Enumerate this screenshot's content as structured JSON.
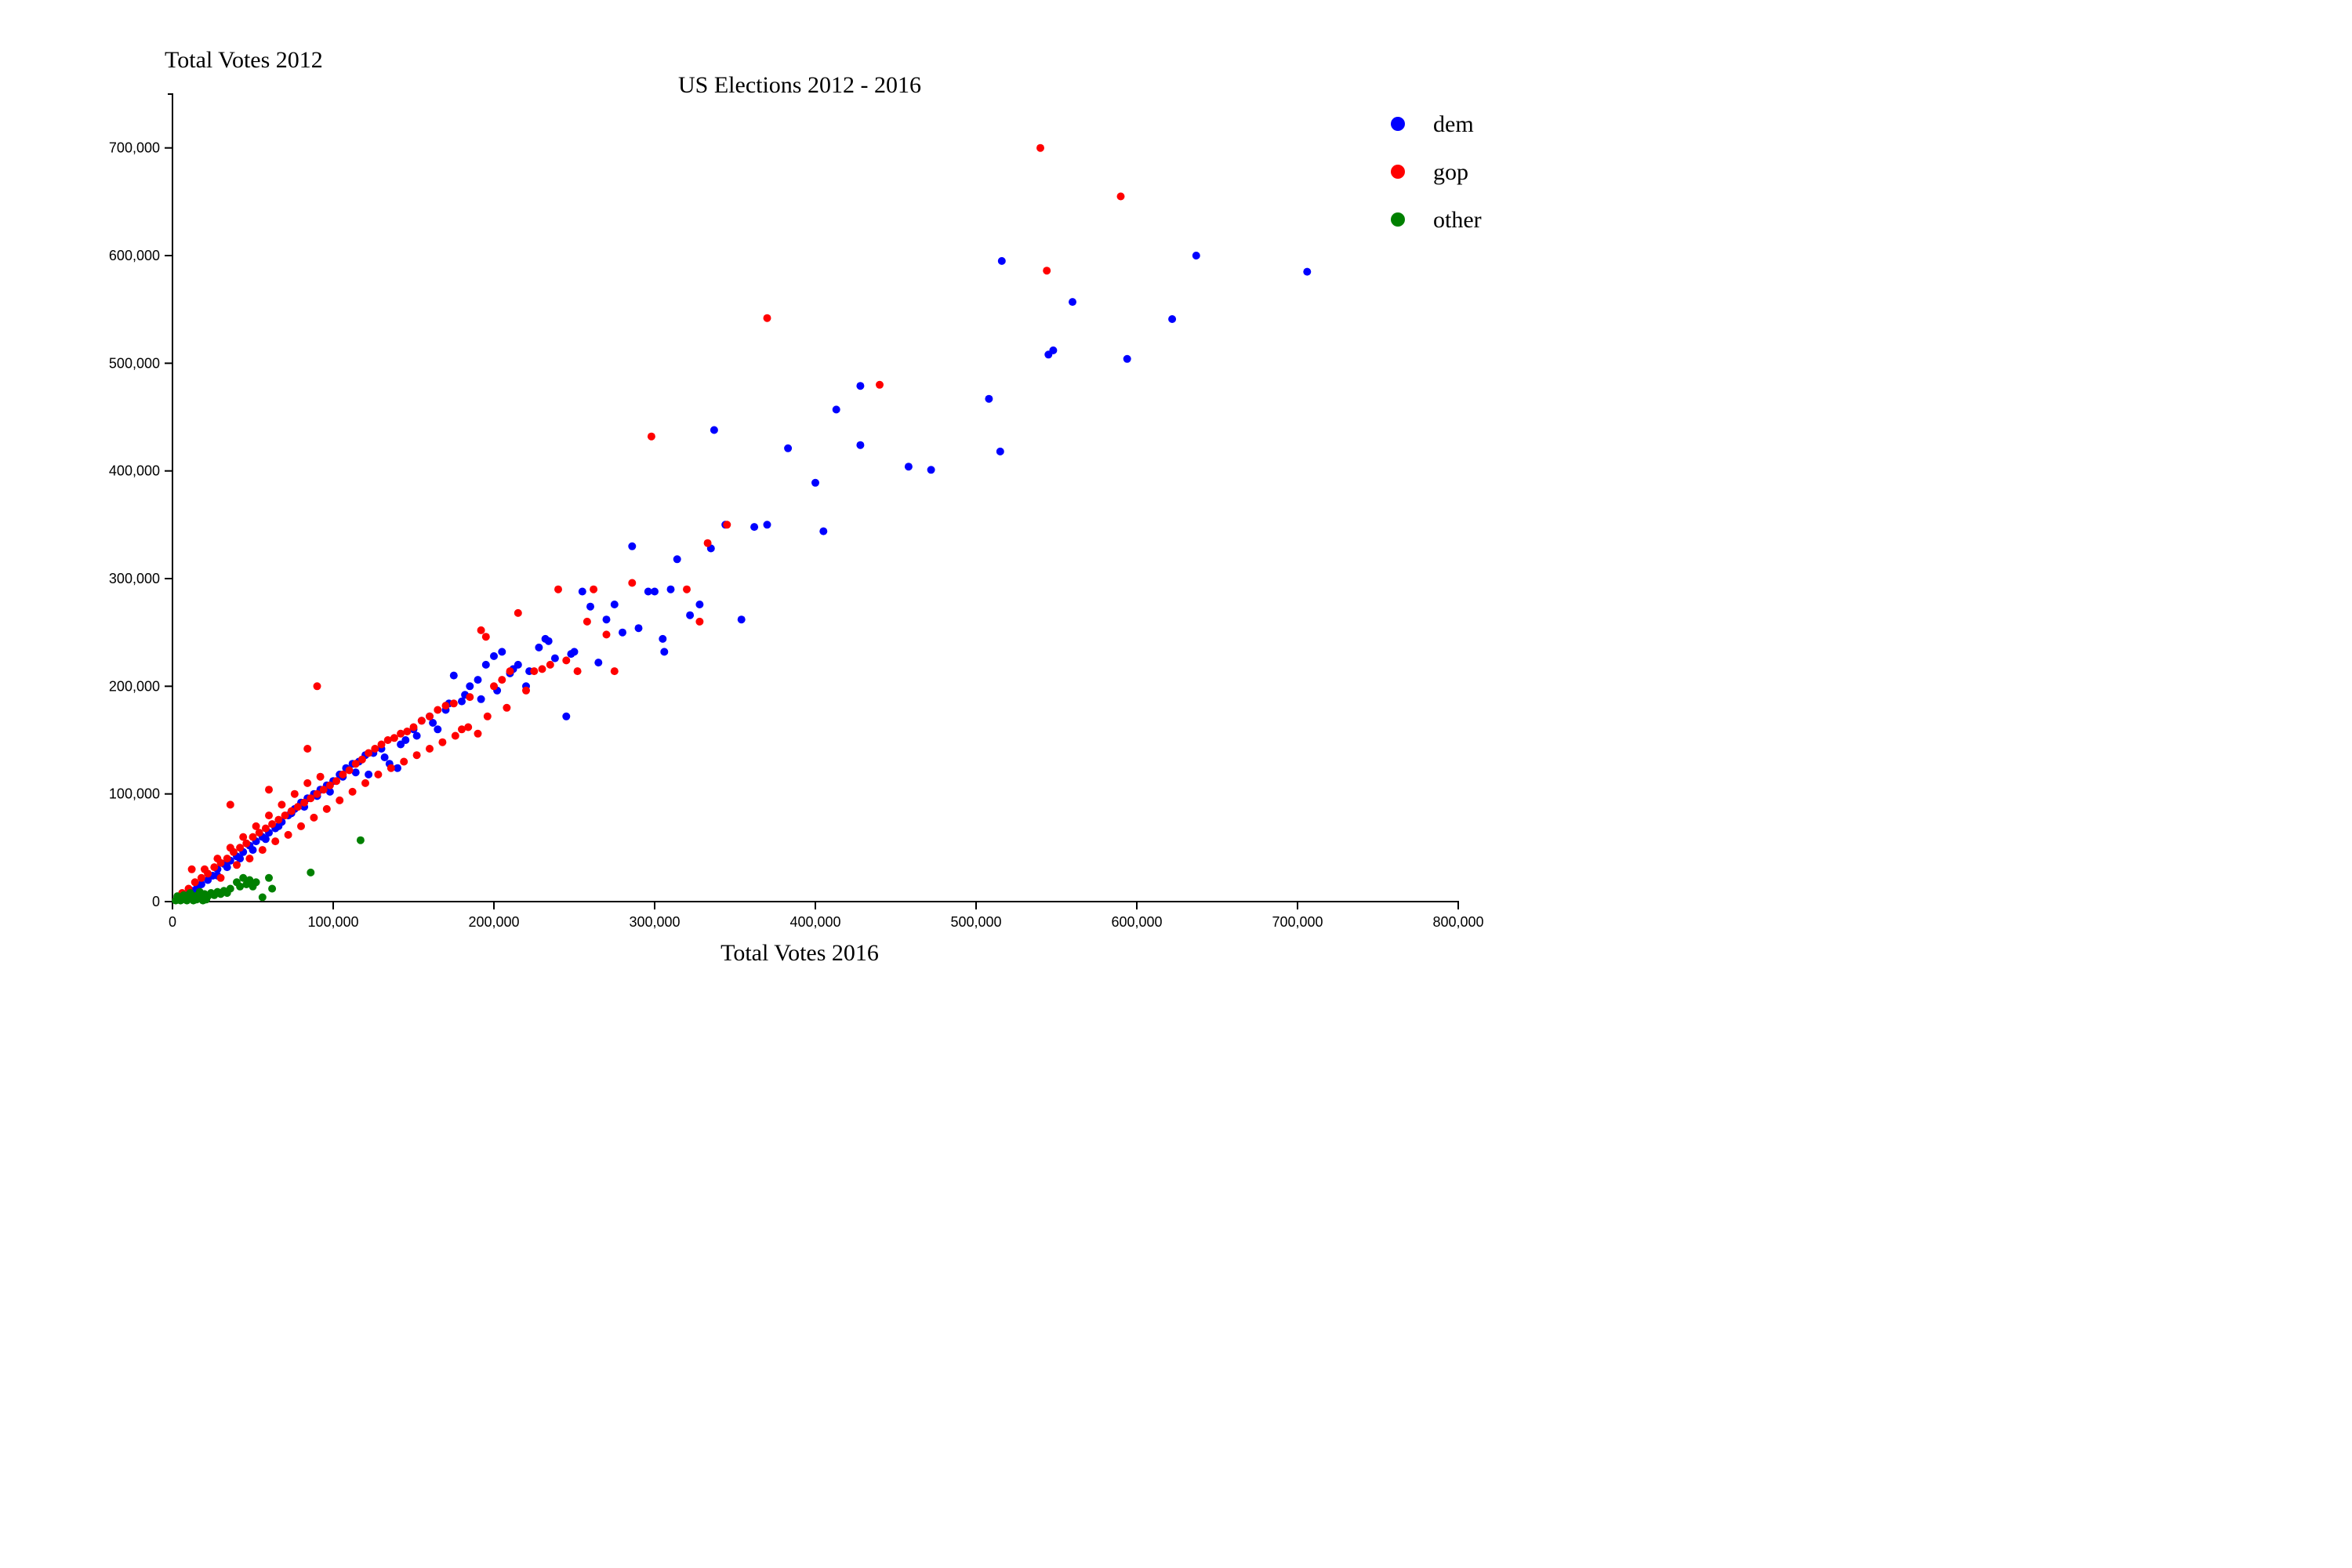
{
  "chart_data": {
    "type": "scatter",
    "title": "US Elections 2012 - 2016",
    "xlabel": "Total Votes 2016",
    "ylabel": "Total Votes 2012",
    "xlim": [
      0,
      800000
    ],
    "ylim": [
      0,
      750000
    ],
    "x_ticks": [
      0,
      100000,
      200000,
      300000,
      400000,
      500000,
      600000,
      700000,
      800000
    ],
    "x_tick_labels": [
      "0",
      "100,000",
      "200,000",
      "300,000",
      "400,000",
      "500,000",
      "600,000",
      "700,000",
      "800,000"
    ],
    "y_ticks": [
      0,
      100000,
      200000,
      300000,
      400000,
      500000,
      600000,
      700000
    ],
    "y_tick_labels": [
      "0",
      "100,000",
      "200,000",
      "300,000",
      "400,000",
      "500,000",
      "600,000",
      "700,000"
    ],
    "grid": false,
    "legend_position": "top-right",
    "series": [
      {
        "name": "dem",
        "color": "#0000ff",
        "points": [
          [
            8000,
            6000
          ],
          [
            12000,
            10000
          ],
          [
            15000,
            12000
          ],
          [
            18000,
            16000
          ],
          [
            22000,
            20000
          ],
          [
            25000,
            24000
          ],
          [
            28000,
            30000
          ],
          [
            32000,
            35000
          ],
          [
            36000,
            38000
          ],
          [
            40000,
            42000
          ],
          [
            44000,
            46000
          ],
          [
            48000,
            52000
          ],
          [
            52000,
            56000
          ],
          [
            56000,
            60000
          ],
          [
            60000,
            64000
          ],
          [
            64000,
            68000
          ],
          [
            68000,
            74000
          ],
          [
            72000,
            80000
          ],
          [
            76000,
            86000
          ],
          [
            80000,
            92000
          ],
          [
            84000,
            96000
          ],
          [
            88000,
            100000
          ],
          [
            92000,
            104000
          ],
          [
            96000,
            108000
          ],
          [
            100000,
            112000
          ],
          [
            104000,
            118000
          ],
          [
            108000,
            124000
          ],
          [
            112000,
            128000
          ],
          [
            116000,
            130000
          ],
          [
            120000,
            136000
          ],
          [
            125000,
            138000
          ],
          [
            130000,
            142000
          ],
          [
            135000,
            128000
          ],
          [
            140000,
            124000
          ],
          [
            145000,
            150000
          ],
          [
            150000,
            160000
          ],
          [
            155000,
            168000
          ],
          [
            160000,
            172000
          ],
          [
            165000,
            160000
          ],
          [
            170000,
            178000
          ],
          [
            175000,
            210000
          ],
          [
            180000,
            186000
          ],
          [
            185000,
            200000
          ],
          [
            190000,
            206000
          ],
          [
            195000,
            220000
          ],
          [
            200000,
            228000
          ],
          [
            205000,
            232000
          ],
          [
            210000,
            212000
          ],
          [
            215000,
            220000
          ],
          [
            220000,
            200000
          ],
          [
            228000,
            236000
          ],
          [
            232000,
            244000
          ],
          [
            238000,
            226000
          ],
          [
            245000,
            172000
          ],
          [
            250000,
            232000
          ],
          [
            255000,
            288000
          ],
          [
            260000,
            274000
          ],
          [
            265000,
            222000
          ],
          [
            270000,
            262000
          ],
          [
            275000,
            276000
          ],
          [
            280000,
            250000
          ],
          [
            286000,
            330000
          ],
          [
            290000,
            254000
          ],
          [
            296000,
            288000
          ],
          [
            300000,
            288000
          ],
          [
            305000,
            244000
          ],
          [
            306000,
            232000
          ],
          [
            310000,
            290000
          ],
          [
            314000,
            318000
          ],
          [
            322000,
            266000
          ],
          [
            328000,
            276000
          ],
          [
            335000,
            328000
          ],
          [
            337000,
            438000
          ],
          [
            344000,
            350000
          ],
          [
            354000,
            262000
          ],
          [
            362000,
            348000
          ],
          [
            370000,
            350000
          ],
          [
            383000,
            421000
          ],
          [
            400000,
            389000
          ],
          [
            405000,
            344000
          ],
          [
            413000,
            457000
          ],
          [
            428000,
            479000
          ],
          [
            428000,
            424000
          ],
          [
            458000,
            404000
          ],
          [
            472000,
            401000
          ],
          [
            508000,
            467000
          ],
          [
            515000,
            418000
          ],
          [
            516000,
            595000
          ],
          [
            545000,
            508000
          ],
          [
            548000,
            512000
          ],
          [
            560000,
            557000
          ],
          [
            594000,
            504000
          ],
          [
            622000,
            541000
          ],
          [
            637000,
            600000
          ],
          [
            706000,
            585000
          ],
          [
            28000,
            24000
          ],
          [
            34000,
            32000
          ],
          [
            42000,
            40000
          ],
          [
            50000,
            48000
          ],
          [
            58000,
            58000
          ],
          [
            66000,
            70000
          ],
          [
            74000,
            82000
          ],
          [
            82000,
            88000
          ],
          [
            90000,
            98000
          ],
          [
            98000,
            102000
          ],
          [
            106000,
            116000
          ],
          [
            114000,
            120000
          ],
          [
            122000,
            118000
          ],
          [
            132000,
            134000
          ],
          [
            142000,
            146000
          ],
          [
            152000,
            154000
          ],
          [
            162000,
            166000
          ],
          [
            172000,
            184000
          ],
          [
            182000,
            192000
          ],
          [
            192000,
            188000
          ],
          [
            202000,
            196000
          ],
          [
            212000,
            216000
          ],
          [
            222000,
            214000
          ],
          [
            234000,
            242000
          ],
          [
            248000,
            230000
          ]
        ]
      },
      {
        "name": "gop",
        "color": "#ff0000",
        "points": [
          [
            6000,
            8000
          ],
          [
            10000,
            12000
          ],
          [
            14000,
            18000
          ],
          [
            18000,
            22000
          ],
          [
            22000,
            26000
          ],
          [
            26000,
            32000
          ],
          [
            30000,
            36000
          ],
          [
            34000,
            40000
          ],
          [
            38000,
            46000
          ],
          [
            42000,
            50000
          ],
          [
            46000,
            54000
          ],
          [
            50000,
            60000
          ],
          [
            54000,
            64000
          ],
          [
            58000,
            68000
          ],
          [
            62000,
            72000
          ],
          [
            66000,
            76000
          ],
          [
            70000,
            80000
          ],
          [
            74000,
            84000
          ],
          [
            78000,
            88000
          ],
          [
            82000,
            92000
          ],
          [
            86000,
            96000
          ],
          [
            90000,
            100000
          ],
          [
            94000,
            104000
          ],
          [
            98000,
            108000
          ],
          [
            102000,
            112000
          ],
          [
            106000,
            118000
          ],
          [
            110000,
            122000
          ],
          [
            114000,
            128000
          ],
          [
            118000,
            132000
          ],
          [
            122000,
            138000
          ],
          [
            126000,
            142000
          ],
          [
            130000,
            146000
          ],
          [
            134000,
            150000
          ],
          [
            138000,
            152000
          ],
          [
            142000,
            156000
          ],
          [
            146000,
            158000
          ],
          [
            150000,
            162000
          ],
          [
            155000,
            168000
          ],
          [
            160000,
            172000
          ],
          [
            165000,
            178000
          ],
          [
            170000,
            182000
          ],
          [
            175000,
            184000
          ],
          [
            180000,
            160000
          ],
          [
            185000,
            190000
          ],
          [
            190000,
            156000
          ],
          [
            192000,
            252000
          ],
          [
            195000,
            246000
          ],
          [
            200000,
            200000
          ],
          [
            205000,
            206000
          ],
          [
            210000,
            214000
          ],
          [
            215000,
            268000
          ],
          [
            220000,
            196000
          ],
          [
            225000,
            214000
          ],
          [
            230000,
            216000
          ],
          [
            235000,
            220000
          ],
          [
            240000,
            290000
          ],
          [
            245000,
            224000
          ],
          [
            252000,
            214000
          ],
          [
            258000,
            260000
          ],
          [
            262000,
            290000
          ],
          [
            270000,
            248000
          ],
          [
            275000,
            214000
          ],
          [
            286000,
            296000
          ],
          [
            298000,
            432000
          ],
          [
            320000,
            290000
          ],
          [
            328000,
            260000
          ],
          [
            333000,
            333000
          ],
          [
            345000,
            350000
          ],
          [
            370000,
            542000
          ],
          [
            440000,
            480000
          ],
          [
            540000,
            700000
          ],
          [
            544000,
            586000
          ],
          [
            590000,
            655000
          ],
          [
            12000,
            30000
          ],
          [
            36000,
            90000
          ],
          [
            60000,
            104000
          ],
          [
            84000,
            142000
          ],
          [
            90000,
            200000
          ],
          [
            30000,
            22000
          ],
          [
            40000,
            34000
          ],
          [
            48000,
            40000
          ],
          [
            56000,
            48000
          ],
          [
            64000,
            56000
          ],
          [
            72000,
            62000
          ],
          [
            80000,
            70000
          ],
          [
            88000,
            78000
          ],
          [
            96000,
            86000
          ],
          [
            104000,
            94000
          ],
          [
            112000,
            102000
          ],
          [
            120000,
            110000
          ],
          [
            128000,
            118000
          ],
          [
            136000,
            124000
          ],
          [
            144000,
            130000
          ],
          [
            152000,
            136000
          ],
          [
            160000,
            142000
          ],
          [
            168000,
            148000
          ],
          [
            176000,
            154000
          ],
          [
            184000,
            162000
          ],
          [
            196000,
            172000
          ],
          [
            208000,
            180000
          ],
          [
            20000,
            30000
          ],
          [
            28000,
            40000
          ],
          [
            36000,
            50000
          ],
          [
            44000,
            60000
          ],
          [
            52000,
            70000
          ],
          [
            60000,
            80000
          ],
          [
            68000,
            90000
          ],
          [
            76000,
            100000
          ],
          [
            84000,
            110000
          ],
          [
            92000,
            116000
          ]
        ]
      },
      {
        "name": "other",
        "color": "#008000",
        "points": [
          [
            2000,
            1000
          ],
          [
            4000,
            2000
          ],
          [
            6000,
            3000
          ],
          [
            8000,
            2000
          ],
          [
            10000,
            4000
          ],
          [
            12000,
            3000
          ],
          [
            14000,
            5000
          ],
          [
            16000,
            6000
          ],
          [
            18000,
            4000
          ],
          [
            20000,
            7000
          ],
          [
            22000,
            5000
          ],
          [
            24000,
            8000
          ],
          [
            26000,
            6000
          ],
          [
            28000,
            9000
          ],
          [
            30000,
            7000
          ],
          [
            32000,
            10000
          ],
          [
            34000,
            8000
          ],
          [
            36000,
            12000
          ],
          [
            40000,
            18000
          ],
          [
            42000,
            14000
          ],
          [
            44000,
            22000
          ],
          [
            46000,
            16000
          ],
          [
            48000,
            20000
          ],
          [
            50000,
            14000
          ],
          [
            52000,
            18000
          ],
          [
            56000,
            4000
          ],
          [
            60000,
            22000
          ],
          [
            62000,
            12000
          ],
          [
            86000,
            27000
          ],
          [
            117000,
            57000
          ],
          [
            3000,
            5000
          ],
          [
            5000,
            1000
          ],
          [
            7000,
            6000
          ],
          [
            9000,
            1000
          ],
          [
            11000,
            8000
          ],
          [
            13000,
            1000
          ],
          [
            15000,
            2000
          ],
          [
            17000,
            9000
          ],
          [
            19000,
            1000
          ],
          [
            21000,
            2000
          ]
        ]
      }
    ]
  }
}
